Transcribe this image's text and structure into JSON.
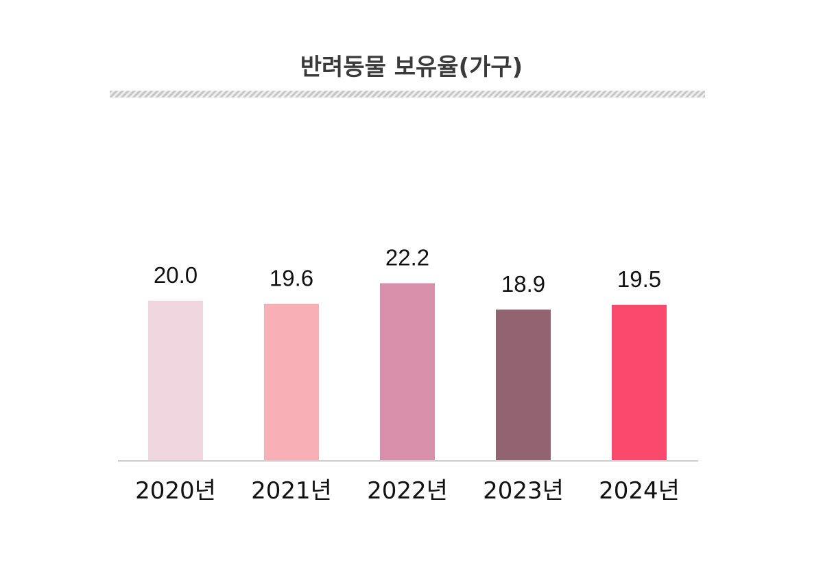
{
  "chart_data": {
    "type": "bar",
    "title": "반려동물 보유율(가구)",
    "categories": [
      "2020년",
      "2021년",
      "2022년",
      "2023년",
      "2024년"
    ],
    "values": [
      20.0,
      19.6,
      22.2,
      18.9,
      19.5
    ],
    "data_labels": [
      "20.0",
      "19.6",
      "22.2",
      "18.9",
      "19.5"
    ],
    "colors": [
      "#EFD5DE",
      "#F8AFB5",
      "#D78FAA",
      "#926472",
      "#F94A6D"
    ],
    "axis_color": "#d0d0d0",
    "ylim": [
      0,
      24
    ],
    "grid": false,
    "legend": "none"
  }
}
